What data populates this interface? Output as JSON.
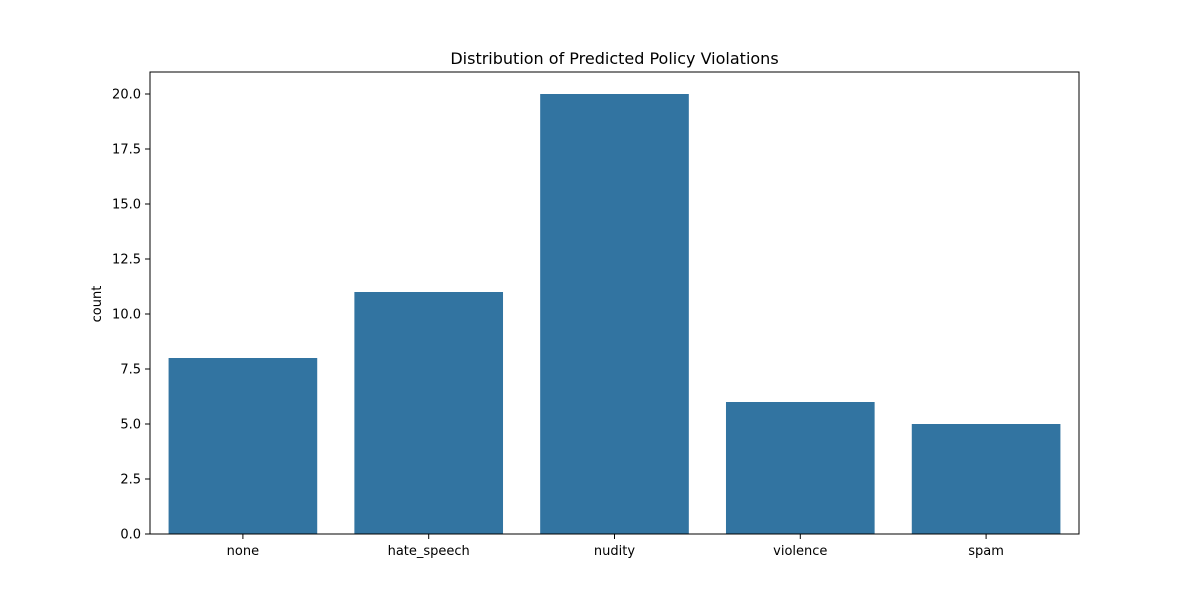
{
  "chart_data": {
    "type": "bar",
    "title": "Distribution of Predicted Policy Violations",
    "xlabel": "",
    "ylabel": "count",
    "categories": [
      "none",
      "hate_speech",
      "nudity",
      "violence",
      "spam"
    ],
    "values": [
      8,
      11,
      20,
      6,
      5
    ],
    "ylim": [
      0,
      21
    ],
    "yticks": [
      "0.0",
      "2.5",
      "5.0",
      "7.5",
      "10.0",
      "12.5",
      "15.0",
      "17.5",
      "20.0"
    ],
    "bar_color": "#3274a1",
    "grid": false,
    "legend": "none"
  }
}
